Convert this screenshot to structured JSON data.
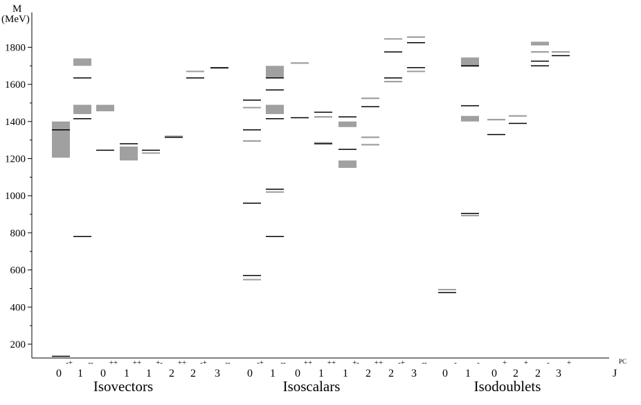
{
  "chart_data": {
    "type": "level-spectrum",
    "ylabel": "M",
    "yunit": "(MeV)",
    "xlabel": "J",
    "xlabel_superscript": "PC",
    "ylim": [
      130,
      1860
    ],
    "yticks": [
      200,
      400,
      600,
      800,
      1000,
      1200,
      1400,
      1600,
      1800
    ],
    "colors": {
      "experiment": "#a0a0a0",
      "theory": "#000000"
    },
    "groups": [
      {
        "name": "Isovectors",
        "columns": [
          {
            "j": "0",
            "pc": "-+",
            "theory": [
              135,
              1355
            ],
            "exp_lines": [],
            "exp_bands": [
              [
                1205,
                1400
              ]
            ]
          },
          {
            "j": "1",
            "pc": "--",
            "theory": [
              780,
              1415,
              1635
            ],
            "exp_lines": [],
            "exp_bands": [
              [
                1440,
                1490
              ],
              [
                1700,
                1740
              ]
            ]
          },
          {
            "j": "0",
            "pc": "++",
            "theory": [
              1245
            ],
            "exp_lines": [],
            "exp_bands": [
              [
                1455,
                1490
              ]
            ]
          },
          {
            "j": "1",
            "pc": "++",
            "theory": [
              1280
            ],
            "exp_lines": [],
            "exp_bands": [
              [
                1190,
                1265
              ]
            ]
          },
          {
            "j": "1",
            "pc": "+-",
            "theory": [
              1245
            ],
            "exp_lines": [
              1230
            ],
            "exp_bands": []
          },
          {
            "j": "2",
            "pc": "++",
            "theory": [
              1315
            ],
            "exp_lines": [
              1320
            ],
            "exp_bands": []
          },
          {
            "j": "2",
            "pc": "-+",
            "theory": [
              1635
            ],
            "exp_lines": [
              1670
            ],
            "exp_bands": []
          },
          {
            "j": "3",
            "pc": "--",
            "theory": [
              1690
            ],
            "exp_lines": [
              1688
            ],
            "exp_bands": []
          }
        ]
      },
      {
        "name": "Isoscalars",
        "columns": [
          {
            "j": "0",
            "pc": "-+",
            "theory": [
              570,
              960,
              1355,
              1515
            ],
            "exp_lines": [
              548,
              1295,
              1475
            ],
            "exp_bands": []
          },
          {
            "j": "1",
            "pc": "--",
            "theory": [
              780,
              1035,
              1415,
              1570,
              1635
            ],
            "exp_lines": [
              1020
            ],
            "exp_bands": [
              [
                1440,
                1490
              ],
              [
                1635,
                1700
              ]
            ]
          },
          {
            "j": "0",
            "pc": "++",
            "theory": [
              1420
            ],
            "exp_lines": [
              1715
            ],
            "exp_bands": []
          },
          {
            "j": "1",
            "pc": "++",
            "theory": [
              1280,
              1450
            ],
            "exp_lines": [
              1285,
              1425
            ],
            "exp_bands": []
          },
          {
            "j": "1",
            "pc": "+-",
            "theory": [
              1250,
              1425
            ],
            "exp_lines": [],
            "exp_bands": [
              [
                1150,
                1190
              ],
              [
                1370,
                1400
              ]
            ]
          },
          {
            "j": "2",
            "pc": "++",
            "theory": [
              1480
            ],
            "exp_lines": [
              1275,
              1315,
              1525
            ],
            "exp_bands": []
          },
          {
            "j": "2",
            "pc": "-+",
            "theory": [
              1635,
              1775
            ],
            "exp_lines": [
              1615,
              1845
            ],
            "exp_bands": []
          },
          {
            "j": "3",
            "pc": "--",
            "theory": [
              1690,
              1825
            ],
            "exp_lines": [
              1670,
              1855
            ],
            "exp_bands": []
          }
        ]
      },
      {
        "name": "Isodoublets",
        "columns": [
          {
            "j": "0",
            "pc": "-",
            "theory": [
              478
            ],
            "exp_lines": [
              494
            ],
            "exp_bands": []
          },
          {
            "j": "1",
            "pc": "-",
            "theory": [
              905,
              1485,
              1700
            ],
            "exp_lines": [
              893
            ],
            "exp_bands": [
              [
                1400,
                1430
              ],
              [
                1695,
                1745
              ]
            ]
          },
          {
            "j": "0",
            "pc": "+",
            "theory": [
              1330
            ],
            "exp_lines": [
              1410
            ],
            "exp_bands": []
          },
          {
            "j": "2",
            "pc": "+",
            "theory": [
              1390
            ],
            "exp_lines": [
              1430
            ],
            "exp_bands": []
          },
          {
            "j": "2",
            "pc": "-",
            "theory": [
              1700,
              1725
            ],
            "exp_lines": [
              1775
            ],
            "exp_bands": [
              [
                1810,
                1830
              ]
            ]
          },
          {
            "j": "3",
            "pc": "+",
            "theory": [
              1755
            ],
            "exp_lines": [
              1775
            ],
            "exp_bands": []
          }
        ]
      }
    ]
  }
}
